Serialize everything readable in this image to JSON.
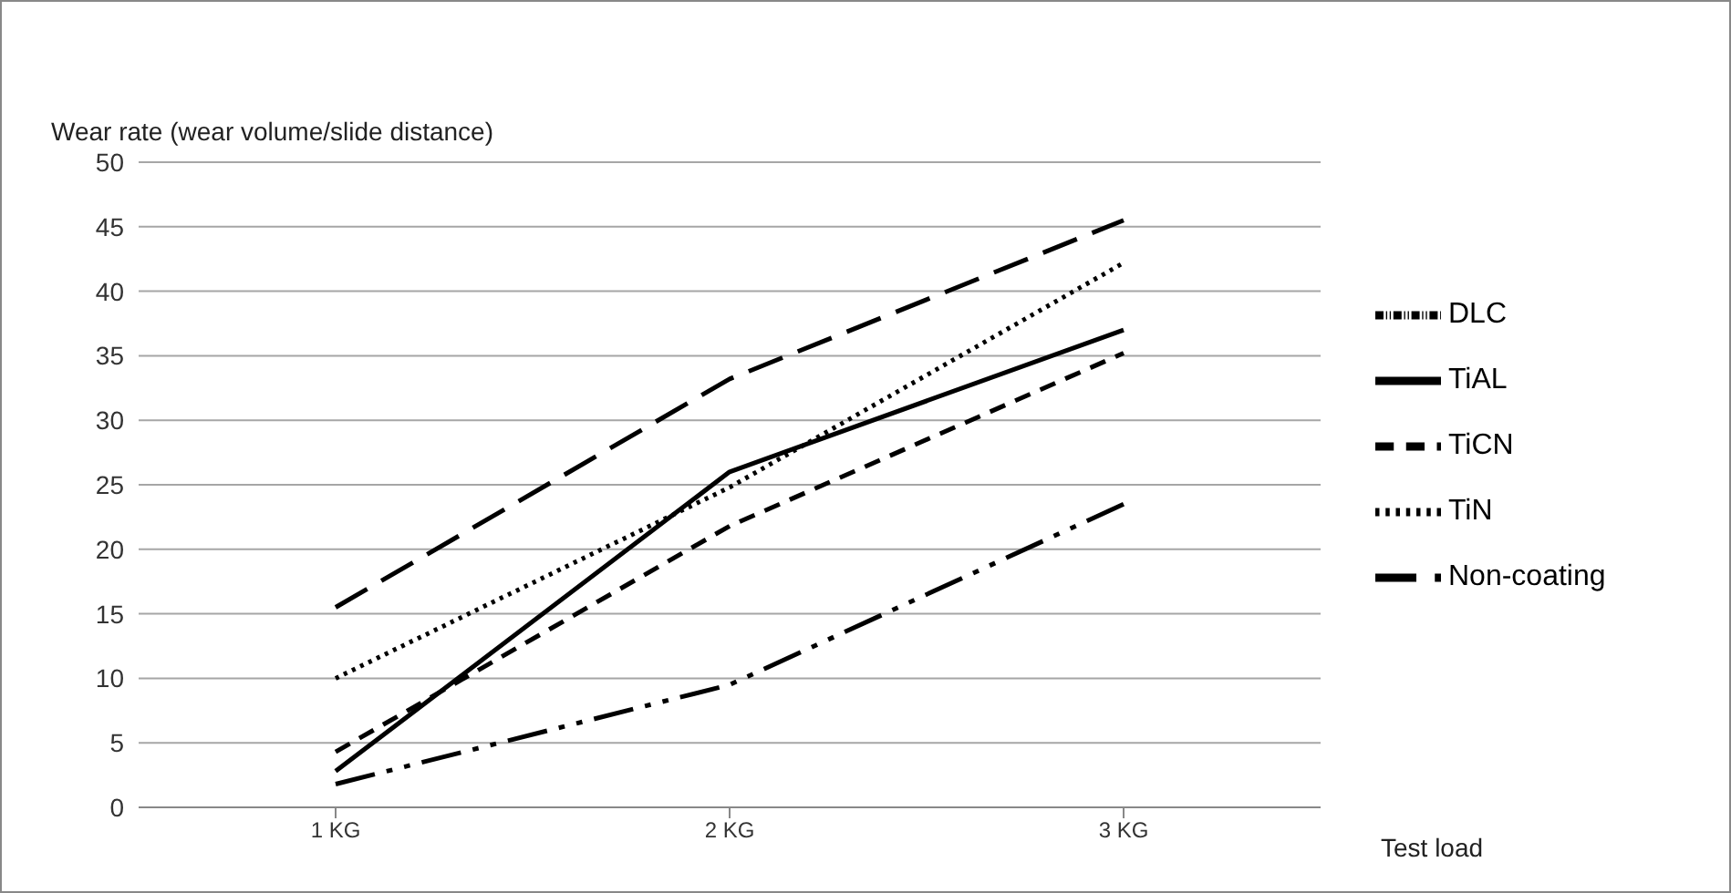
{
  "chart_data": {
    "type": "line",
    "ylabel": "Wear rate (wear volume/slide distance)",
    "xlabel": "Test load",
    "categories": [
      "1 KG",
      "2 KG",
      "3 KG"
    ],
    "ylim": [
      0,
      50
    ],
    "yticks": [
      0,
      5,
      10,
      15,
      20,
      25,
      30,
      35,
      40,
      45,
      50
    ],
    "grid": "y",
    "legend": "right",
    "marker": "none",
    "series": [
      {
        "name": "DLC",
        "color": "#000000",
        "line_style": "dashdot",
        "values": [
          1.8,
          9.5,
          23.5
        ]
      },
      {
        "name": "TiAL",
        "color": "#000000",
        "line_style": "solid",
        "values": [
          2.8,
          26,
          37
        ]
      },
      {
        "name": "TiCN",
        "color": "#000000",
        "line_style": "dashed",
        "values": [
          4.3,
          21.8,
          35.2
        ]
      },
      {
        "name": "TiN",
        "color": "#000000",
        "line_style": "dotted",
        "values": [
          10,
          24.8,
          42.2
        ]
      },
      {
        "name": "Non-coating",
        "color": "#000000",
        "line_style": "longdash",
        "values": [
          15.5,
          33.2,
          45.5
        ]
      }
    ]
  }
}
